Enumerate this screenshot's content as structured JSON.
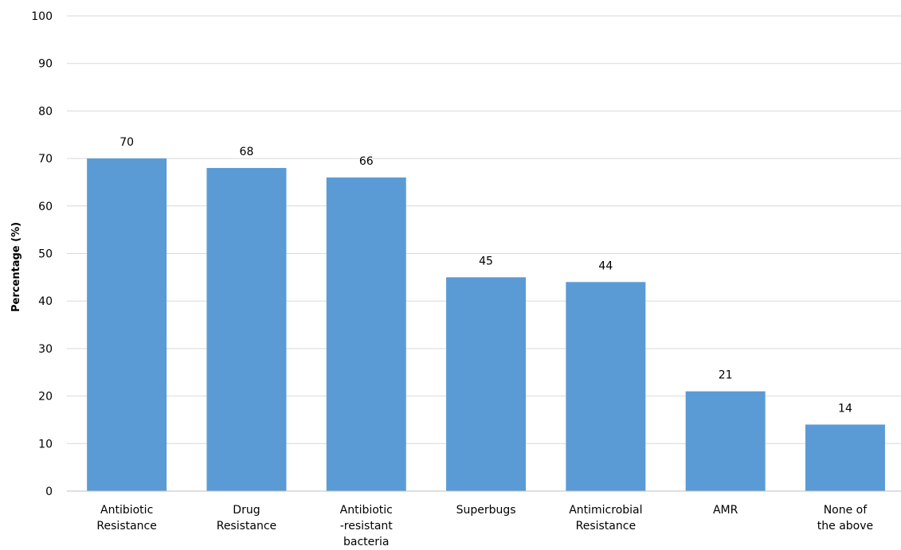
{
  "chart_data": {
    "type": "bar",
    "categories": [
      [
        "Antibiotic",
        "Resistance"
      ],
      [
        "Drug",
        "Resistance"
      ],
      [
        "Antibiotic",
        "-resistant",
        "bacteria"
      ],
      [
        "Superbugs"
      ],
      [
        "Antimicrobial",
        "Resistance"
      ],
      [
        "AMR"
      ],
      [
        "None of",
        "the above"
      ]
    ],
    "values": [
      70,
      68,
      66,
      45,
      44,
      21,
      14
    ],
    "data_labels": [
      "70",
      "68",
      "66",
      "45",
      "44",
      "21",
      "14"
    ],
    "ylabel": "Percentage (%)",
    "xlabel": "",
    "ylim": [
      0,
      100
    ],
    "yticks": [
      0,
      10,
      20,
      30,
      40,
      50,
      60,
      70,
      80,
      90,
      100
    ],
    "grid": true,
    "legend": "none",
    "colors": {
      "bar": "#5b9bd5",
      "grid": "#d9d9d9",
      "axis": "#bfbfbf"
    }
  }
}
